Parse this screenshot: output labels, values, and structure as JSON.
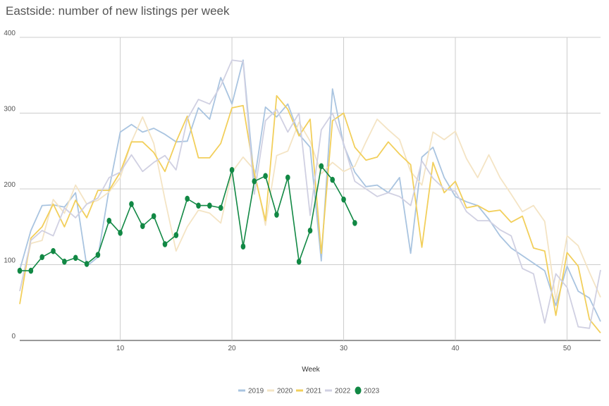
{
  "chart_data": {
    "type": "line",
    "title": "Eastside: number of new listings per week",
    "xlabel": "Week",
    "ylabel": "",
    "xlim": [
      1,
      53
    ],
    "ylim": [
      0,
      400
    ],
    "x_ticks": [
      10,
      20,
      30,
      40,
      50
    ],
    "y_ticks": [
      0,
      100,
      200,
      300,
      400
    ],
    "grid": true,
    "legend_position": "bottom",
    "series": [
      {
        "name": "2019",
        "color": "#a9c4e0",
        "markers": false,
        "values": [
          93,
          145,
          178,
          179,
          176,
          195,
          98,
          110,
          200,
          275,
          285,
          275,
          280,
          272,
          262,
          263,
          307,
          292,
          347,
          312,
          370,
          210,
          308,
          295,
          312,
          272,
          255,
          105,
          332,
          258,
          222,
          203,
          205,
          195,
          215,
          115,
          242,
          255,
          215,
          190,
          183,
          178,
          160,
          138,
          122,
          112,
          102,
          92,
          46,
          98,
          65,
          56,
          25
        ]
      },
      {
        "name": "2020",
        "color": "#f4e4c4",
        "markers": false,
        "values": [
          65,
          128,
          132,
          186,
          168,
          205,
          180,
          185,
          196,
          215,
          262,
          295,
          260,
          186,
          118,
          150,
          172,
          168,
          155,
          222,
          242,
          225,
          152,
          244,
          250,
          288,
          263,
          220,
          235,
          223,
          230,
          262,
          292,
          278,
          265,
          223,
          205,
          275,
          265,
          276,
          240,
          215,
          245,
          215,
          193,
          170,
          178,
          157,
          53,
          138,
          125,
          90,
          57
        ]
      },
      {
        "name": "2021",
        "color": "#f2cf5b",
        "markers": false,
        "values": [
          48,
          135,
          150,
          180,
          150,
          185,
          162,
          198,
          198,
          222,
          262,
          262,
          248,
          223,
          262,
          296,
          241,
          241,
          260,
          307,
          310,
          220,
          158,
          323,
          305,
          270,
          292,
          115,
          290,
          300,
          255,
          238,
          242,
          262,
          246,
          232,
          123,
          235,
          195,
          210,
          175,
          178,
          170,
          172,
          156,
          164,
          122,
          118,
          33,
          116,
          98,
          28,
          10
        ]
      },
      {
        "name": "2022",
        "color": "#d0d0e2",
        "markers": false,
        "values": [
          65,
          132,
          145,
          138,
          175,
          162,
          180,
          188,
          215,
          222,
          245,
          223,
          235,
          244,
          225,
          292,
          318,
          312,
          336,
          370,
          368,
          193,
          290,
          305,
          275,
          300,
          165,
          278,
          300,
          260,
          210,
          200,
          190,
          195,
          190,
          178,
          237,
          214,
          200,
          197,
          170,
          158,
          158,
          146,
          138,
          95,
          88,
          23,
          88,
          70,
          18,
          16,
          93
        ]
      },
      {
        "name": "2023",
        "color": "#118844",
        "markers": true,
        "values": [
          92,
          92,
          110,
          118,
          104,
          109,
          101,
          113,
          158,
          142,
          180,
          151,
          164,
          127,
          139,
          187,
          178,
          178,
          175,
          225,
          124,
          210,
          217,
          166,
          215,
          104,
          145,
          230,
          212,
          186,
          155
        ]
      }
    ]
  }
}
